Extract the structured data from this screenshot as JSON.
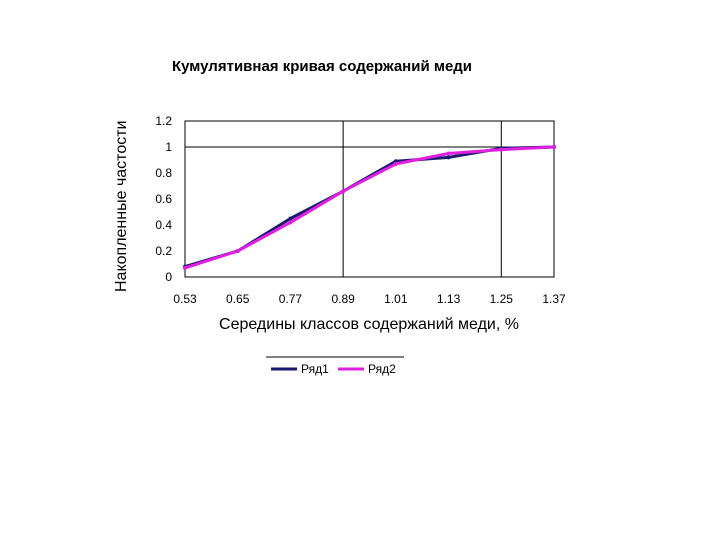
{
  "chart_data": {
    "type": "line",
    "title": "Кумулятивная кривая содержаний меди",
    "xlabel": "Середины классов содержаний меди, %",
    "ylabel": "Накопленные частости",
    "categories": [
      "0.53",
      "0.65",
      "0.77",
      "0.89",
      "1.01",
      "1.13",
      "1.25",
      "1.37"
    ],
    "x_tick_labels": [
      "0.53",
      "0.65",
      "0.77",
      "0.89",
      "1.01",
      "1.13",
      "1.25",
      "1.37"
    ],
    "y_tick_labels": [
      "0",
      "0.2",
      "0.4",
      "0.6",
      "0.8",
      "1",
      "1.2"
    ],
    "ylim": [
      0,
      1.2
    ],
    "y_ticks": [
      0,
      0.2,
      0.4,
      0.6,
      0.8,
      1.0,
      1.2
    ],
    "grid": "vertical lines at 0.89 and 1.25, horizontal line at 1",
    "legend_position": "bottom",
    "series": [
      {
        "name": "Ряд1",
        "color": "#1a1a6e",
        "values": [
          0.08,
          0.2,
          0.45,
          0.66,
          0.89,
          0.92,
          0.99,
          1.0
        ]
      },
      {
        "name": "Ряд2",
        "color": "#e020e0",
        "values": [
          0.07,
          0.2,
          0.42,
          0.66,
          0.87,
          0.95,
          0.98,
          1.0
        ]
      }
    ]
  }
}
